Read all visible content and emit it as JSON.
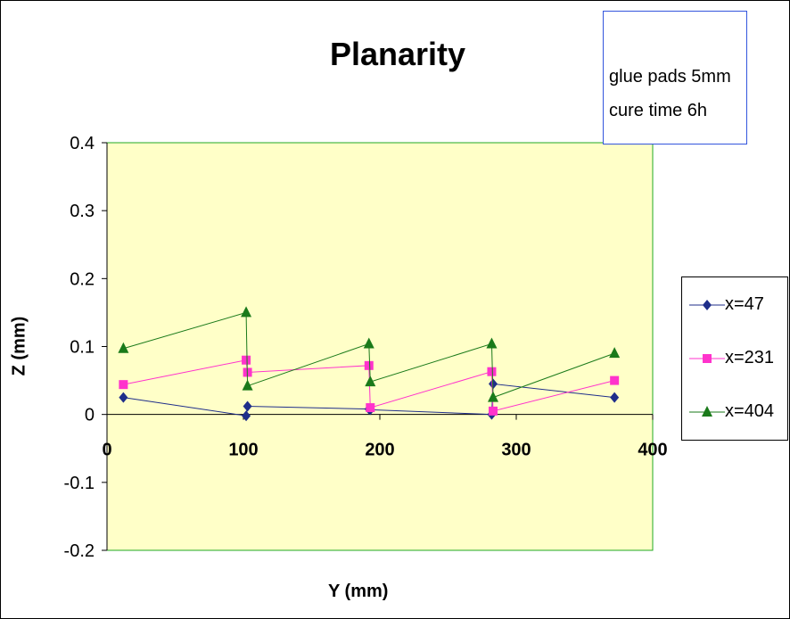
{
  "chart_data": {
    "type": "scatter",
    "title": "Planarity",
    "xlabel": "Y (mm)",
    "ylabel": "Z (mm)",
    "xlim": [
      0,
      400
    ],
    "ylim": [
      -0.2,
      0.4
    ],
    "xticks": [
      "0",
      "100",
      "200",
      "300",
      "400"
    ],
    "yticks": [
      "-0.2",
      "-0.1",
      "0",
      "0.1",
      "0.2",
      "0.3",
      "0.4"
    ],
    "legend_position": "right",
    "annotation": [
      "glue pads 5mm",
      "cure time 6h"
    ],
    "plot_background": "#ffffc8",
    "series": [
      {
        "name": "x=47",
        "color": "#1f2e8a",
        "marker": "diamond",
        "x": [
          12,
          102,
          103,
          192,
          193,
          282,
          283,
          372
        ],
        "y": [
          0.025,
          -0.002,
          0.012,
          0.008,
          0.007,
          0.0,
          0.045,
          0.025
        ]
      },
      {
        "name": "x=231",
        "color": "#ff33cc",
        "marker": "square",
        "x": [
          12,
          102,
          103,
          192,
          193,
          282,
          283,
          372
        ],
        "y": [
          0.044,
          0.08,
          0.062,
          0.072,
          0.01,
          0.063,
          0.005,
          0.05
        ]
      },
      {
        "name": "x=404",
        "color": "#1a7a1a",
        "marker": "triangle",
        "x": [
          12,
          102,
          103,
          192,
          193,
          282,
          283,
          372
        ],
        "y": [
          0.097,
          0.15,
          0.042,
          0.104,
          0.048,
          0.104,
          0.025,
          0.09
        ]
      }
    ]
  }
}
